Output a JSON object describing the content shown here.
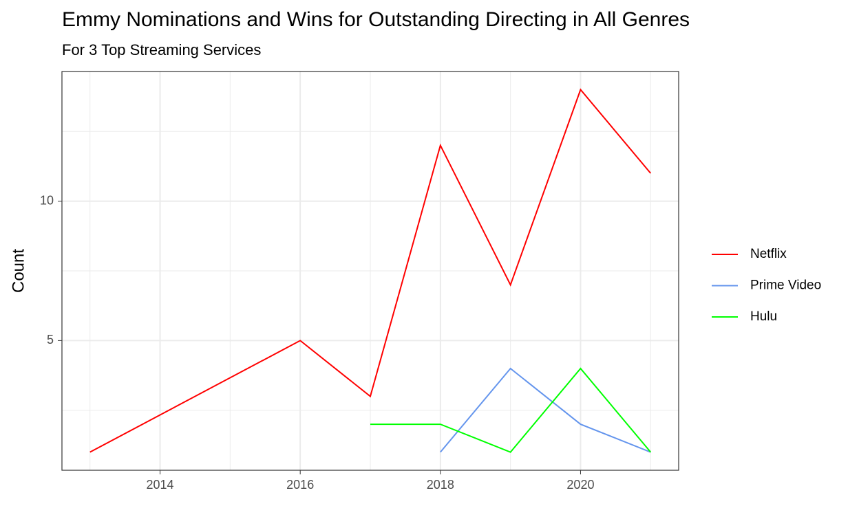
{
  "chart_data": {
    "type": "line",
    "title": "Emmy Nominations and Wins for Outstanding Directing in All Genres",
    "subtitle": "For 3 Top Streaming Services",
    "y_label": "Count",
    "series": [
      {
        "name": "Netflix",
        "color": "#ff0000",
        "x": [
          2013,
          2016,
          2017,
          2018,
          2019,
          2020,
          2021
        ],
        "values": [
          1,
          5,
          3,
          12,
          7,
          14,
          11
        ]
      },
      {
        "name": "Prime Video",
        "color": "#6495ed",
        "x": [
          2018,
          2019,
          2020,
          2021
        ],
        "values": [
          1,
          4,
          2,
          1
        ]
      },
      {
        "name": "Hulu",
        "color": "#00ff00",
        "x": [
          2017,
          2018,
          2019,
          2020,
          2021
        ],
        "values": [
          2,
          2,
          1,
          4,
          1
        ]
      }
    ],
    "xlim": [
      2012.6,
      2021.4
    ],
    "xticks": [
      2014,
      2016,
      2018,
      2020
    ],
    "ylim": [
      0.35,
      14.65
    ],
    "yticks": [
      5,
      10
    ],
    "grid": true,
    "legend_position": "right"
  }
}
